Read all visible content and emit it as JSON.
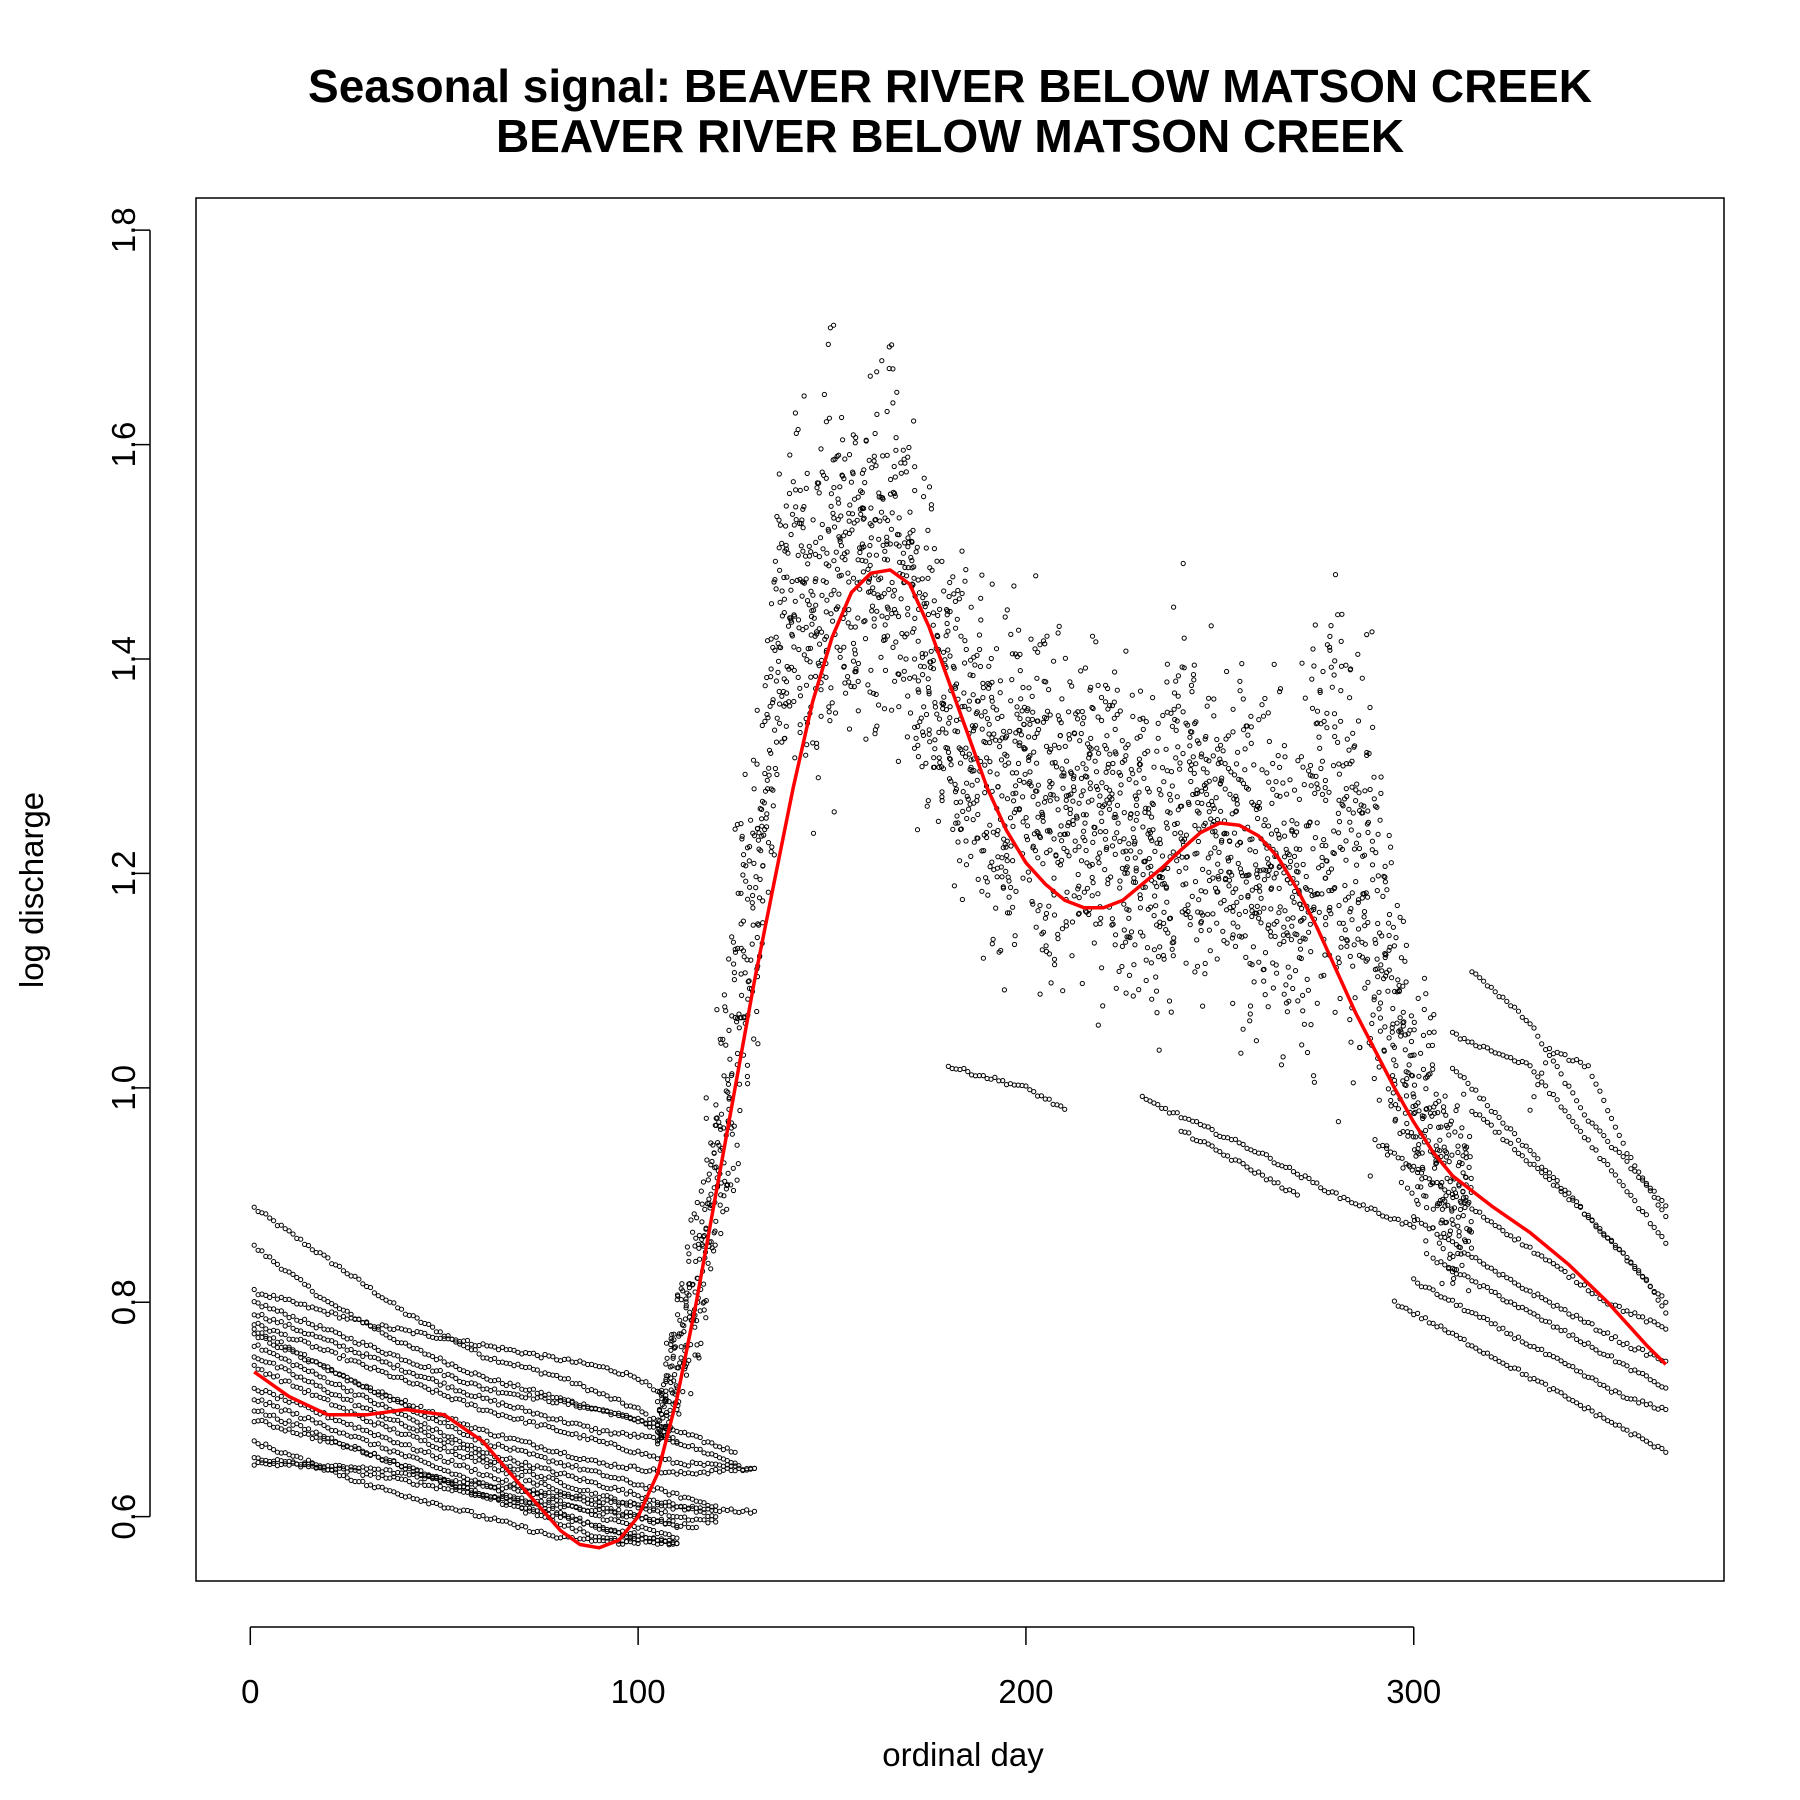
{
  "chart_data": {
    "type": "scatter",
    "title": "Seasonal signal: BEAVER RIVER BELOW MATSON CREEK",
    "subtitle": "BEAVER RIVER BELOW MATSON CREEK",
    "xlabel": "ordinal day",
    "ylabel": "log discharge",
    "xlim": [
      -14,
      380
    ],
    "ylim": [
      0.54,
      1.83
    ],
    "x_ticks": [
      0,
      100,
      200,
      300
    ],
    "y_ticks": [
      0.6,
      0.8,
      1.0,
      1.2,
      1.4,
      1.6,
      1.8
    ],
    "grid": false,
    "legend": "none",
    "colors": {
      "points": "#000000",
      "fit": "#ff0000"
    },
    "series": [
      {
        "type": "scatter",
        "recession_curves": [
          [
            [
              1,
              0.888
            ],
            [
              20,
              0.84
            ],
            [
              40,
              0.79
            ],
            [
              60,
              0.75
            ],
            [
              80,
              0.73
            ],
            [
              100,
              0.7
            ],
            [
              108,
              0.68
            ]
          ],
          [
            [
              1,
              0.852
            ],
            [
              20,
              0.8
            ],
            [
              40,
              0.76
            ],
            [
              60,
              0.73
            ],
            [
              80,
              0.71
            ],
            [
              100,
              0.69
            ],
            [
              110,
              0.67
            ]
          ],
          [
            [
              1,
              0.81
            ],
            [
              30,
              0.78
            ],
            [
              60,
              0.76
            ],
            [
              90,
              0.74
            ],
            [
              100,
              0.73
            ],
            [
              110,
              0.7
            ]
          ],
          [
            [
              1,
              0.8
            ],
            [
              30,
              0.76
            ],
            [
              60,
              0.72
            ],
            [
              90,
              0.7
            ],
            [
              110,
              0.68
            ],
            [
              125,
              0.66
            ]
          ],
          [
            [
              1,
              0.79
            ],
            [
              30,
              0.75
            ],
            [
              60,
              0.71
            ],
            [
              90,
              0.68
            ],
            [
              110,
              0.67
            ],
            [
              125,
              0.65
            ]
          ],
          [
            [
              1,
              0.78
            ],
            [
              30,
              0.74
            ],
            [
              60,
              0.7
            ],
            [
              90,
              0.67
            ],
            [
              110,
              0.65
            ],
            [
              130,
              0.645
            ]
          ],
          [
            [
              1,
              0.775
            ],
            [
              30,
              0.72
            ],
            [
              60,
              0.68
            ],
            [
              90,
              0.65
            ],
            [
              110,
              0.64
            ],
            [
              130,
              0.645
            ]
          ],
          [
            [
              1,
              0.77
            ],
            [
              30,
              0.72
            ],
            [
              60,
              0.67
            ],
            [
              90,
              0.64
            ],
            [
              110,
              0.62
            ],
            [
              120,
              0.61
            ]
          ],
          [
            [
              1,
              0.76
            ],
            [
              30,
              0.71
            ],
            [
              60,
              0.66
            ],
            [
              90,
              0.63
            ],
            [
              110,
              0.61
            ],
            [
              120,
              0.6
            ]
          ],
          [
            [
              1,
              0.75
            ],
            [
              30,
              0.7
            ],
            [
              60,
              0.655
            ],
            [
              90,
              0.62
            ],
            [
              110,
              0.6
            ],
            [
              120,
              0.595
            ]
          ],
          [
            [
              1,
              0.74
            ],
            [
              30,
              0.69
            ],
            [
              60,
              0.65
            ],
            [
              90,
              0.61
            ],
            [
              110,
              0.59
            ]
          ],
          [
            [
              1,
              0.72
            ],
            [
              30,
              0.68
            ],
            [
              60,
              0.64
            ],
            [
              90,
              0.6
            ],
            [
              110,
              0.58
            ]
          ],
          [
            [
              1,
              0.71
            ],
            [
              30,
              0.67
            ],
            [
              60,
              0.63
            ],
            [
              90,
              0.59
            ],
            [
              110,
              0.575
            ]
          ],
          [
            [
              1,
              0.7
            ],
            [
              30,
              0.66
            ],
            [
              60,
              0.62
            ],
            [
              90,
              0.58
            ],
            [
              110,
              0.575
            ]
          ],
          [
            [
              1,
              0.69
            ],
            [
              30,
              0.66
            ],
            [
              60,
              0.62
            ],
            [
              80,
              0.6
            ],
            [
              100,
              0.58
            ],
            [
              110,
              0.575
            ]
          ],
          [
            [
              1,
              0.67
            ],
            [
              30,
              0.63
            ],
            [
              60,
              0.6
            ],
            [
              80,
              0.58
            ],
            [
              100,
              0.575
            ]
          ],
          [
            [
              1,
              0.655
            ],
            [
              30,
              0.64
            ],
            [
              60,
              0.62
            ],
            [
              80,
              0.61
            ],
            [
              100,
              0.6
            ],
            [
              115,
              0.59
            ]
          ],
          [
            [
              1,
              0.65
            ],
            [
              30,
              0.645
            ],
            [
              60,
              0.63
            ],
            [
              80,
              0.62
            ],
            [
              100,
              0.61
            ],
            [
              130,
              0.605
            ]
          ],
          [
            [
              180,
              1.02
            ],
            [
              200,
              1.0
            ],
            [
              210,
              0.98
            ]
          ],
          [
            [
              230,
              0.99
            ],
            [
              260,
              0.94
            ],
            [
              280,
              0.9
            ],
            [
              300,
              0.87
            ]
          ],
          [
            [
              240,
              0.96
            ],
            [
              260,
              0.92
            ],
            [
              270,
              0.9
            ]
          ],
          [
            [
              290,
              0.95
            ],
            [
              310,
              0.9
            ],
            [
              330,
              0.85
            ],
            [
              350,
              0.8
            ],
            [
              365,
              0.775
            ]
          ],
          [
            [
              300,
              0.88
            ],
            [
              320,
              0.83
            ],
            [
              340,
              0.79
            ],
            [
              355,
              0.76
            ],
            [
              365,
              0.745
            ]
          ],
          [
            [
              305,
              0.84
            ],
            [
              325,
              0.8
            ],
            [
              345,
              0.76
            ],
            [
              360,
              0.73
            ],
            [
              365,
              0.72
            ]
          ],
          [
            [
              300,
              0.82
            ],
            [
              320,
              0.78
            ],
            [
              340,
              0.74
            ],
            [
              355,
              0.71
            ],
            [
              365,
              0.7
            ]
          ],
          [
            [
              295,
              0.8
            ],
            [
              315,
              0.76
            ],
            [
              335,
              0.72
            ],
            [
              350,
              0.69
            ],
            [
              365,
              0.66
            ]
          ],
          [
            [
              315,
              1.11
            ],
            [
              330,
              1.06
            ],
            [
              345,
              0.97
            ],
            [
              360,
              0.91
            ],
            [
              365,
              0.89
            ]
          ],
          [
            [
              310,
              1.05
            ],
            [
              330,
              1.02
            ],
            [
              345,
              0.95
            ],
            [
              360,
              0.88
            ],
            [
              365,
              0.855
            ]
          ],
          [
            [
              330,
              0.98
            ],
            [
              335,
              1.035
            ],
            [
              345,
              1.02
            ],
            [
              355,
              0.94
            ],
            [
              365,
              0.88
            ]
          ],
          [
            [
              310,
              1.02
            ],
            [
              325,
              0.96
            ],
            [
              340,
              0.9
            ],
            [
              355,
              0.84
            ],
            [
              365,
              0.8
            ]
          ],
          [
            [
              315,
              0.98
            ],
            [
              330,
              0.93
            ],
            [
              345,
              0.88
            ],
            [
              360,
              0.82
            ],
            [
              365,
              0.79
            ]
          ]
        ],
        "cloud_envelope": [
          [
            105,
            0.64,
            0.74
          ],
          [
            110,
            0.66,
            0.85
          ],
          [
            115,
            0.69,
            0.95
          ],
          [
            120,
            0.75,
            1.1
          ],
          [
            125,
            0.85,
            1.3
          ],
          [
            130,
            0.95,
            1.45
          ],
          [
            135,
            1.15,
            1.62
          ],
          [
            140,
            1.22,
            1.72
          ],
          [
            145,
            1.18,
            1.7
          ],
          [
            150,
            1.22,
            1.78
          ],
          [
            155,
            1.25,
            1.72
          ],
          [
            160,
            1.28,
            1.7
          ],
          [
            165,
            1.24,
            1.77
          ],
          [
            170,
            1.22,
            1.7
          ],
          [
            175,
            1.2,
            1.62
          ],
          [
            180,
            1.15,
            1.59
          ],
          [
            185,
            1.08,
            1.56
          ],
          [
            190,
            1.05,
            1.5
          ],
          [
            195,
            1.04,
            1.5
          ],
          [
            200,
            1.05,
            1.55
          ],
          [
            205,
            1.03,
            1.5
          ],
          [
            210,
            1.02,
            1.49
          ],
          [
            215,
            1.03,
            1.5
          ],
          [
            220,
            1.02,
            1.52
          ],
          [
            225,
            1.0,
            1.45
          ],
          [
            230,
            1.0,
            1.45
          ],
          [
            235,
            0.99,
            1.45
          ],
          [
            240,
            1.0,
            1.53
          ],
          [
            245,
            1.01,
            1.48
          ],
          [
            250,
            1.03,
            1.43
          ],
          [
            255,
            1.0,
            1.47
          ],
          [
            260,
            0.98,
            1.45
          ],
          [
            265,
            0.98,
            1.42
          ],
          [
            270,
            0.97,
            1.4
          ],
          [
            275,
            0.96,
            1.53
          ],
          [
            280,
            0.95,
            1.56
          ],
          [
            285,
            0.92,
            1.5
          ],
          [
            290,
            0.88,
            1.45
          ],
          [
            295,
            0.85,
            1.25
          ],
          [
            300,
            0.82,
            1.15
          ],
          [
            305,
            0.78,
            1.1
          ],
          [
            310,
            0.76,
            1.05
          ],
          [
            315,
            0.8,
            1.0
          ]
        ]
      },
      {
        "type": "line",
        "x": [
          1,
          10,
          20,
          30,
          40,
          50,
          60,
          70,
          80,
          85,
          90,
          95,
          100,
          105,
          110,
          115,
          120,
          125,
          130,
          135,
          140,
          145,
          150,
          155,
          160,
          165,
          170,
          175,
          180,
          185,
          190,
          195,
          200,
          205,
          210,
          215,
          220,
          225,
          230,
          235,
          240,
          245,
          250,
          255,
          260,
          265,
          270,
          275,
          280,
          285,
          290,
          295,
          300,
          305,
          310,
          320,
          330,
          340,
          350,
          360,
          365
        ],
        "y": [
          0.735,
          0.712,
          0.695,
          0.695,
          0.7,
          0.695,
          0.67,
          0.628,
          0.587,
          0.574,
          0.571,
          0.578,
          0.6,
          0.64,
          0.71,
          0.8,
          0.9,
          1.0,
          1.1,
          1.19,
          1.28,
          1.36,
          1.42,
          1.462,
          1.48,
          1.483,
          1.47,
          1.43,
          1.38,
          1.33,
          1.28,
          1.24,
          1.21,
          1.19,
          1.175,
          1.168,
          1.168,
          1.175,
          1.19,
          1.205,
          1.222,
          1.238,
          1.247,
          1.245,
          1.235,
          1.215,
          1.185,
          1.15,
          1.11,
          1.07,
          1.035,
          1.0,
          0.968,
          0.94,
          0.918,
          0.89,
          0.865,
          0.835,
          0.8,
          0.76,
          0.742
        ]
      }
    ]
  }
}
